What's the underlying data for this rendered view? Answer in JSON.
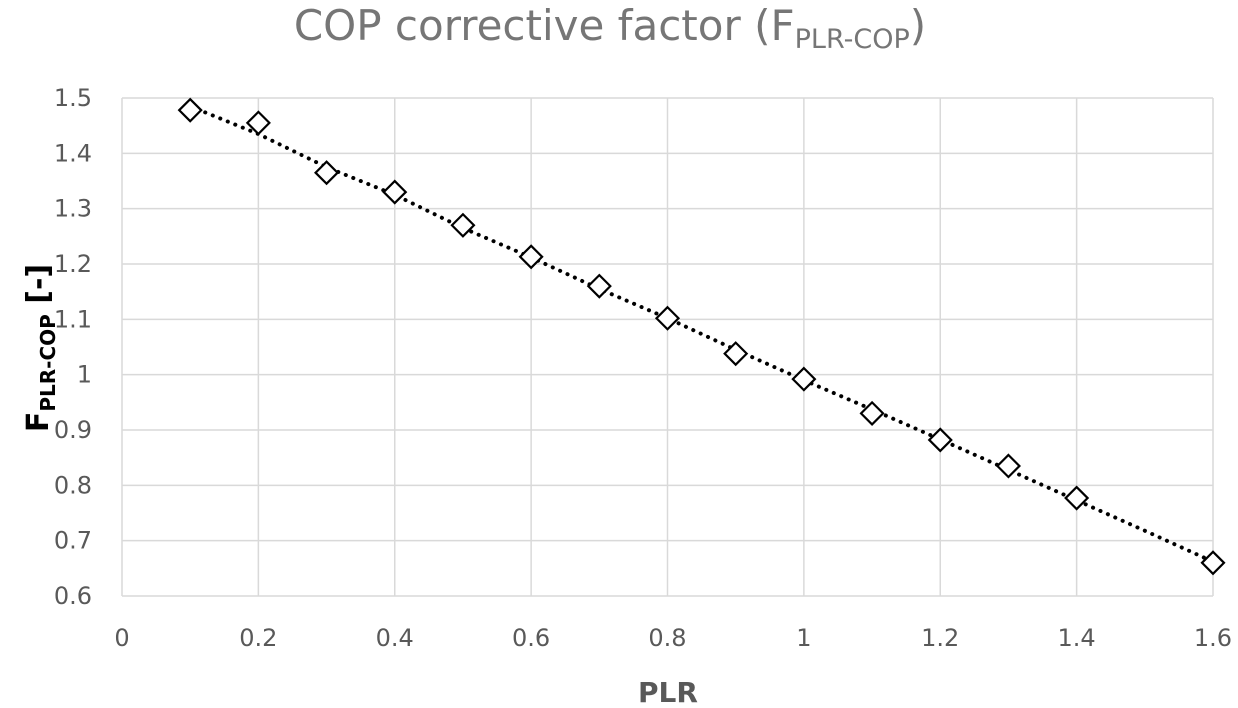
{
  "chart_data": {
    "type": "scatter",
    "title": {
      "main": "COP corrective factor (F",
      "sub": "PLR-COP",
      "close": ")"
    },
    "xlabel": "PLR",
    "ylabel": {
      "main": "F",
      "sub": "PLR-COP",
      "suffix": " [-]"
    },
    "xlim": [
      0,
      1.6
    ],
    "ylim": [
      0.6,
      1.5
    ],
    "x_ticks": [
      0,
      0.2,
      0.4,
      0.6,
      0.8,
      1,
      1.2,
      1.4,
      1.6
    ],
    "x_tick_labels": [
      "0",
      "0.2",
      "0.4",
      "0.6",
      "0.8",
      "1",
      "1.2",
      "1.4",
      "1.6"
    ],
    "y_ticks": [
      0.6,
      0.7,
      0.8,
      0.9,
      1,
      1.1,
      1.2,
      1.3,
      1.4,
      1.5
    ],
    "y_tick_labels": [
      "0.6",
      "0.7",
      "0.8",
      "0.9",
      "1",
      "1.1",
      "1.2",
      "1.3",
      "1.4",
      "1.5"
    ],
    "grid": true,
    "series": [
      {
        "name": "FPLR-COP",
        "marker": "diamond",
        "x": [
          0.1,
          0.2,
          0.3,
          0.4,
          0.5,
          0.6,
          0.7,
          0.8,
          0.9,
          1.0,
          1.1,
          1.2,
          1.3,
          1.4,
          1.6
        ],
        "y": [
          1.478,
          1.455,
          1.365,
          1.33,
          1.27,
          1.213,
          1.16,
          1.102,
          1.038,
          0.992,
          0.93,
          0.882,
          0.835,
          0.777,
          0.66
        ]
      }
    ],
    "trendline": {
      "style": "dotted",
      "x": [
        0.1,
        0.2,
        0.3,
        0.4,
        0.5,
        0.6,
        0.7,
        0.8,
        0.9,
        1.0,
        1.1,
        1.2,
        1.3,
        1.4,
        1.5,
        1.6
      ],
      "y": [
        1.485,
        1.435,
        1.375,
        1.325,
        1.265,
        1.212,
        1.155,
        1.102,
        1.045,
        0.99,
        0.937,
        0.883,
        0.828,
        0.773,
        0.718,
        0.662
      ]
    }
  }
}
